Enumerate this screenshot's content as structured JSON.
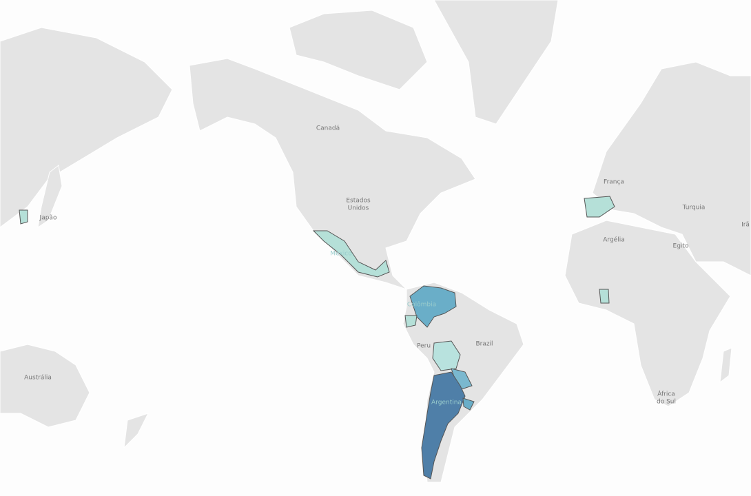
{
  "map": {
    "labels": [
      "Canadá",
      "Estados",
      "Unidos",
      "Japão",
      "França",
      "Turquia",
      "Irã",
      "Argélia",
      "Egito",
      "Brazil",
      "Peru",
      "Austrália",
      "África",
      "do Sul",
      "Argentina",
      "Colômbia",
      "México"
    ]
  }
}
